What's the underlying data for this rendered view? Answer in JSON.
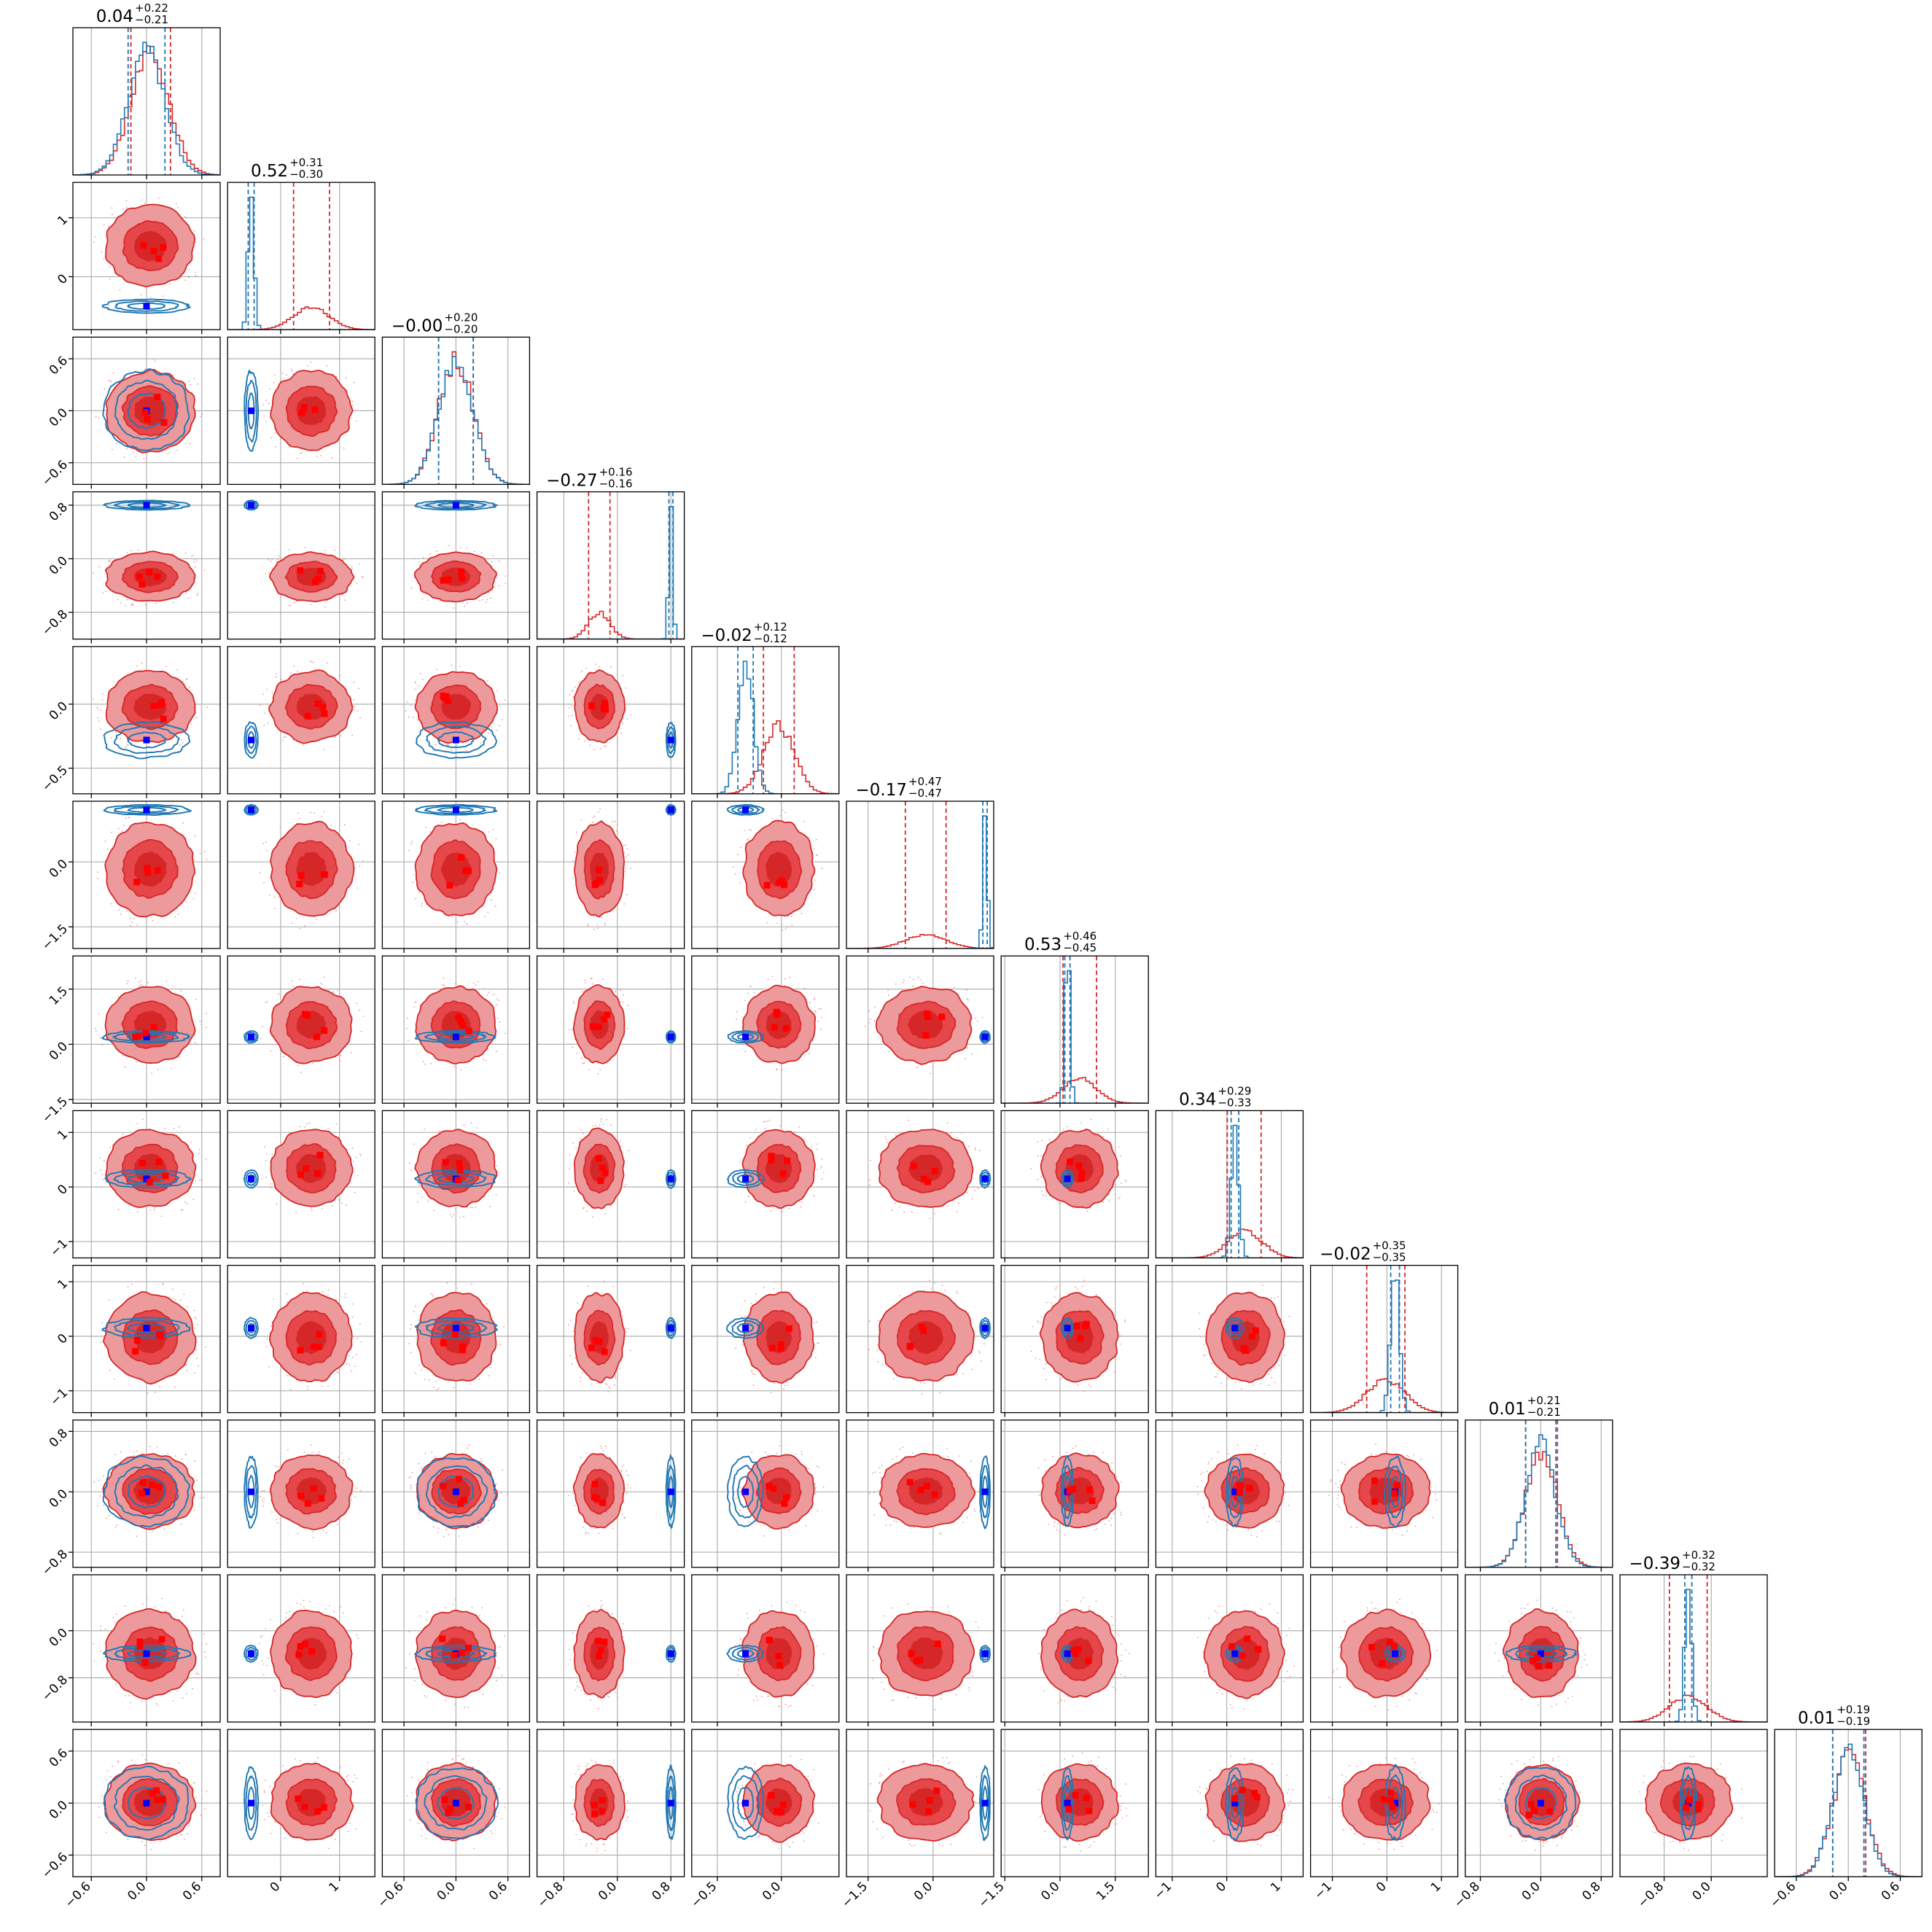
{
  "chart_data": {
    "type": "corner",
    "n_params": 12,
    "colors": {
      "red": "#d62728",
      "red_light": "#ec9a9c",
      "red_mid": "#e6474a",
      "blue": "#1f77b4",
      "marker_blue": "#0000ff",
      "marker_red": "#ff0000"
    },
    "series": [
      {
        "color_key": "red",
        "style": "filled contours + step histograms"
      },
      {
        "color_key": "blue",
        "style": "line contours + step histograms"
      }
    ],
    "titles": [
      {
        "main": "0.04",
        "plus": "+0.22",
        "minus": "−0.21"
      },
      {
        "main": "0.52",
        "plus": "+0.31",
        "minus": "−0.30"
      },
      {
        "main": "−0.00",
        "plus": "+0.20",
        "minus": "−0.20"
      },
      {
        "main": "−0.27",
        "plus": "+0.16",
        "minus": "−0.16"
      },
      {
        "main": "−0.02",
        "plus": "+0.12",
        "minus": "−0.12"
      },
      {
        "main": "−0.17",
        "plus": "+0.47",
        "minus": "−0.47"
      },
      {
        "main": "0.53",
        "plus": "+0.46",
        "minus": "−0.45"
      },
      {
        "main": "0.34",
        "plus": "+0.29",
        "minus": "−0.33"
      },
      {
        "main": "−0.02",
        "plus": "+0.35",
        "minus": "−0.35"
      },
      {
        "main": "0.01",
        "plus": "+0.21",
        "minus": "−0.21"
      },
      {
        "main": "−0.39",
        "plus": "+0.32",
        "minus": "−0.32"
      },
      {
        "main": "0.01",
        "plus": "+0.19",
        "minus": "−0.19"
      }
    ],
    "params": [
      {
        "range": [
          -0.8,
          0.8
        ],
        "red": {
          "mean": 0.04,
          "sd": 0.21,
          "q": [
            -0.17,
            0.26
          ]
        },
        "blue": {
          "mean": 0.0,
          "sd": 0.2,
          "q": [
            -0.2,
            0.2
          ]
        },
        "marker": 0.0,
        "yticks": [],
        "xticks": [
          -0.6,
          0.0,
          0.6
        ],
        "xtick_labels": [
          "−0.6",
          "0.0",
          "0.6"
        ]
      },
      {
        "range": [
          -0.9,
          1.6
        ],
        "red": {
          "mean": 0.52,
          "sd": 0.3,
          "q": [
            0.22,
            0.83
          ]
        },
        "blue": {
          "mean": -0.5,
          "sd": 0.05,
          "q": [
            -0.55,
            -0.45
          ]
        },
        "marker": -0.5,
        "yticks": [
          -0.5,
          0.5,
          1.5
        ],
        "ytick_labels": [
          "0",
          "1",
          ""
        ],
        "ytick_vals": [
          0,
          1
        ],
        "xticks": [
          0,
          1
        ],
        "xtick_labels": [
          "0",
          "1"
        ]
      },
      {
        "range": [
          -0.85,
          0.85
        ],
        "red": {
          "mean": 0.0,
          "sd": 0.2,
          "q": [
            -0.2,
            0.2
          ]
        },
        "blue": {
          "mean": 0.0,
          "sd": 0.2,
          "q": [
            -0.2,
            0.2
          ]
        },
        "marker": 0.0,
        "ytick_vals": [
          -0.6,
          0.0,
          0.6
        ],
        "ytick_labels": [
          "−0.6",
          "0.0",
          "0.6"
        ],
        "xticks": [
          -0.6,
          0.0,
          0.6
        ],
        "xtick_labels": [
          "−0.6",
          "0.0",
          "0.6"
        ]
      },
      {
        "range": [
          -1.2,
          1.0
        ],
        "red": {
          "mean": -0.27,
          "sd": 0.16,
          "q": [
            -0.43,
            -0.11
          ]
        },
        "blue": {
          "mean": 0.8,
          "sd": 0.03,
          "q": [
            0.77,
            0.83
          ]
        },
        "marker": 0.8,
        "ytick_vals": [
          -0.8,
          0.0,
          0.8
        ],
        "ytick_labels": [
          "−0.8",
          "0.0",
          "0.8"
        ],
        "xticks": [
          -0.8,
          0.0,
          0.8
        ],
        "xtick_labels": [
          "−0.8",
          "0.0",
          "0.8"
        ]
      },
      {
        "range": [
          -0.7,
          0.45
        ],
        "red": {
          "mean": -0.02,
          "sd": 0.12,
          "q": [
            -0.14,
            0.1
          ]
        },
        "blue": {
          "mean": -0.28,
          "sd": 0.06,
          "q": [
            -0.34,
            -0.22
          ]
        },
        "marker": -0.28,
        "ytick_vals": [
          -0.5,
          0.0
        ],
        "ytick_labels": [
          "−0.5",
          "0.0"
        ],
        "xticks": [
          -0.5,
          0.0
        ],
        "xtick_labels": [
          "−0.5",
          "0.0"
        ]
      },
      {
        "range": [
          -2.0,
          1.4
        ],
        "red": {
          "mean": -0.17,
          "sd": 0.47,
          "q": [
            -0.64,
            0.3
          ]
        },
        "blue": {
          "mean": 1.2,
          "sd": 0.05,
          "q": [
            1.15,
            1.25
          ]
        },
        "marker": 1.2,
        "ytick_vals": [
          -1.5,
          0.0
        ],
        "ytick_labels": [
          "−1.5",
          "0.0"
        ],
        "xticks": [
          -1.5,
          0.0
        ],
        "xtick_labels": [
          "−1.5",
          "0.0"
        ]
      },
      {
        "range": [
          -1.6,
          2.4
        ],
        "red": {
          "mean": 0.53,
          "sd": 0.45,
          "q": [
            0.08,
            0.99
          ]
        },
        "blue": {
          "mean": 0.2,
          "sd": 0.07,
          "q": [
            0.13,
            0.27
          ]
        },
        "marker": 0.2,
        "ytick_vals": [
          -1.5,
          0.0,
          1.5
        ],
        "ytick_labels": [
          "−1.5",
          "0.0",
          "1.5"
        ],
        "xticks": [
          -1.5,
          0.0,
          1.5
        ],
        "xtick_labels": [
          "−1.5",
          "0.0",
          "1.5"
        ]
      },
      {
        "range": [
          -1.3,
          1.4
        ],
        "red": {
          "mean": 0.34,
          "sd": 0.31,
          "q": [
            0.01,
            0.63
          ]
        },
        "blue": {
          "mean": 0.15,
          "sd": 0.07,
          "q": [
            0.08,
            0.22
          ]
        },
        "marker": 0.15,
        "ytick_vals": [
          -1,
          0,
          1
        ],
        "ytick_labels": [
          "−1",
          "0",
          "1"
        ],
        "xticks": [
          -1,
          0,
          1
        ],
        "xtick_labels": [
          "−1",
          "0",
          "1"
        ]
      },
      {
        "range": [
          -1.4,
          1.3
        ],
        "red": {
          "mean": -0.02,
          "sd": 0.35,
          "q": [
            -0.37,
            0.33
          ]
        },
        "blue": {
          "mean": 0.15,
          "sd": 0.08,
          "q": [
            0.07,
            0.23
          ]
        },
        "marker": 0.15,
        "ytick_vals": [
          -1,
          0,
          1
        ],
        "ytick_labels": [
          "−1",
          "0",
          "1"
        ],
        "xticks": [
          -1,
          0,
          1
        ],
        "xtick_labels": [
          "−1",
          "0",
          "1"
        ]
      },
      {
        "range": [
          -1.0,
          0.95
        ],
        "red": {
          "mean": 0.01,
          "sd": 0.21,
          "q": [
            -0.2,
            0.22
          ]
        },
        "blue": {
          "mean": 0.0,
          "sd": 0.2,
          "q": [
            -0.2,
            0.2
          ]
        },
        "marker": 0.0,
        "ytick_vals": [
          -0.8,
          0.0,
          0.8
        ],
        "ytick_labels": [
          "−0.8",
          "0.0",
          "0.8"
        ],
        "xticks": [
          -0.8,
          0.0,
          0.8
        ],
        "xtick_labels": [
          "−0.8",
          "0.0",
          "0.8"
        ]
      },
      {
        "range": [
          -1.55,
          0.95
        ],
        "red": {
          "mean": -0.39,
          "sd": 0.32,
          "q": [
            -0.71,
            -0.07
          ]
        },
        "blue": {
          "mean": -0.39,
          "sd": 0.06,
          "q": [
            -0.45,
            -0.33
          ]
        },
        "marker": -0.39,
        "ytick_vals": [
          -0.8,
          0.0
        ],
        "ytick_labels": [
          "−0.8",
          "0.0"
        ],
        "xticks": [
          -0.8,
          0.0
        ],
        "xtick_labels": [
          "−0.8",
          "0.0"
        ]
      },
      {
        "range": [
          -0.85,
          0.85
        ],
        "red": {
          "mean": 0.01,
          "sd": 0.19,
          "q": [
            -0.18,
            0.2
          ]
        },
        "blue": {
          "mean": 0.0,
          "sd": 0.18,
          "q": [
            -0.18,
            0.18
          ]
        },
        "marker": 0.0,
        "ytick_vals": [
          -0.6,
          0.0,
          0.6
        ],
        "ytick_labels": [
          "−0.6",
          "0.0",
          "0.6"
        ],
        "xticks": [
          -0.6,
          0.0,
          0.6
        ],
        "xtick_labels": [
          "−0.6",
          "0.0",
          "0.6"
        ]
      }
    ]
  }
}
